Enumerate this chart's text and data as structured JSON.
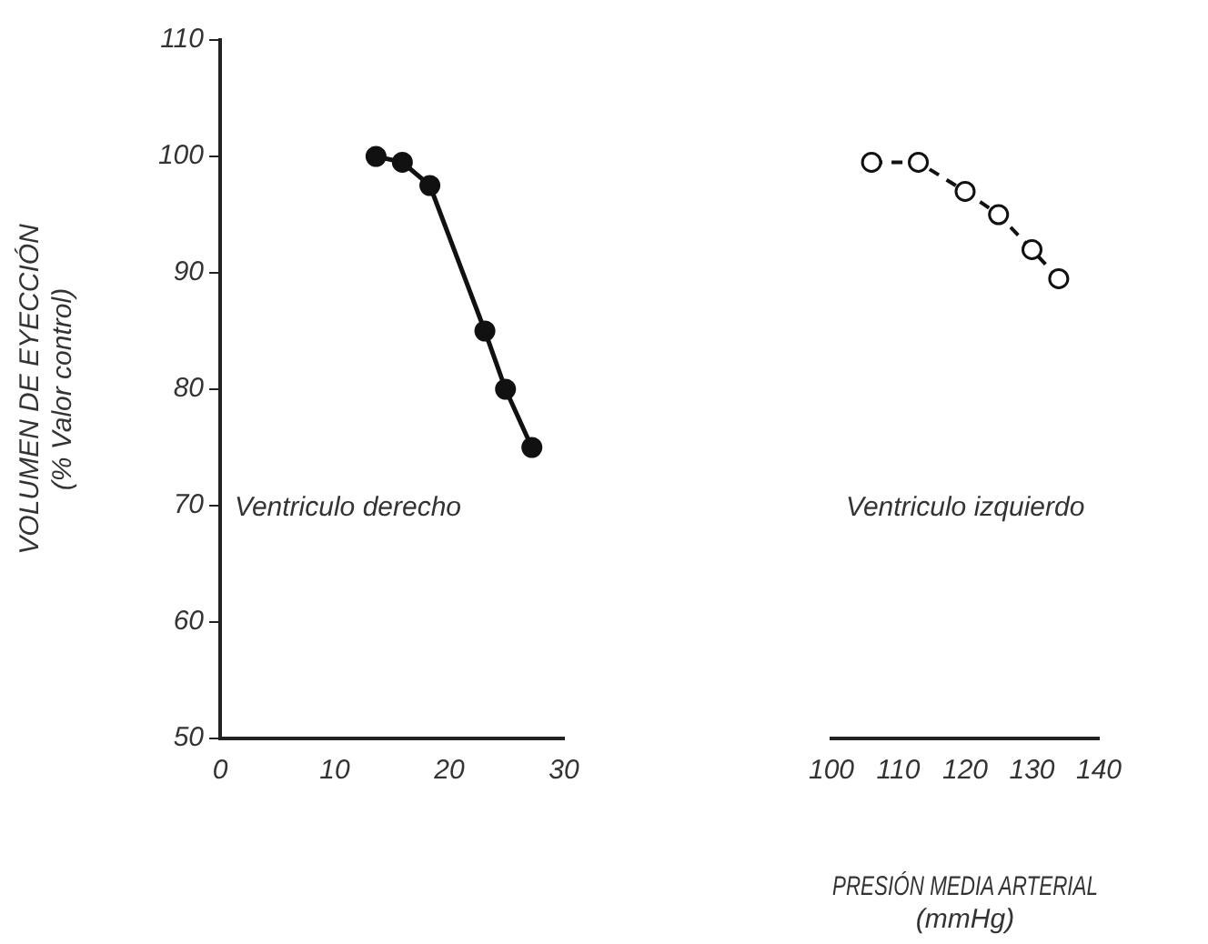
{
  "chart_data": [
    {
      "type": "line",
      "ylabel": "VOLUMEN DE EYECCIÓN\n(% Valor control)",
      "xlim": [
        0,
        30
      ],
      "xticks": [
        0,
        10,
        20,
        30
      ],
      "ylim": [
        50,
        110
      ],
      "yticks": [
        50,
        60,
        70,
        80,
        90,
        100,
        110
      ],
      "marker": "circle",
      "grid": false,
      "legend": false,
      "series": [
        {
          "name": "Ventriculo derecho",
          "color": "#111111",
          "line_style": "solid",
          "x": [
            13.6,
            15.9,
            18.3,
            23.1,
            24.9,
            27.2
          ],
          "values": [
            100,
            99.5,
            97.5,
            85,
            80,
            75
          ]
        }
      ]
    },
    {
      "type": "line",
      "xlabel": "PRESIÓN MEDIA ARTERIAL\n(mmHg)",
      "xlim": [
        100,
        140
      ],
      "xticks": [
        100,
        110,
        120,
        130,
        140
      ],
      "ylim": [
        50,
        110
      ],
      "yticks": [
        50,
        60,
        70,
        80,
        90,
        100,
        110
      ],
      "tick_labels": "x",
      "marker": "circle",
      "grid": false,
      "legend": false,
      "series": [
        {
          "name": "Ventriculo izquierdo",
          "color": "#111111",
          "line_style": "dashed",
          "x": [
            106,
            113,
            120,
            125,
            130,
            134
          ],
          "values": [
            99.5,
            99.5,
            97,
            95,
            92,
            89.5
          ]
        }
      ]
    }
  ]
}
